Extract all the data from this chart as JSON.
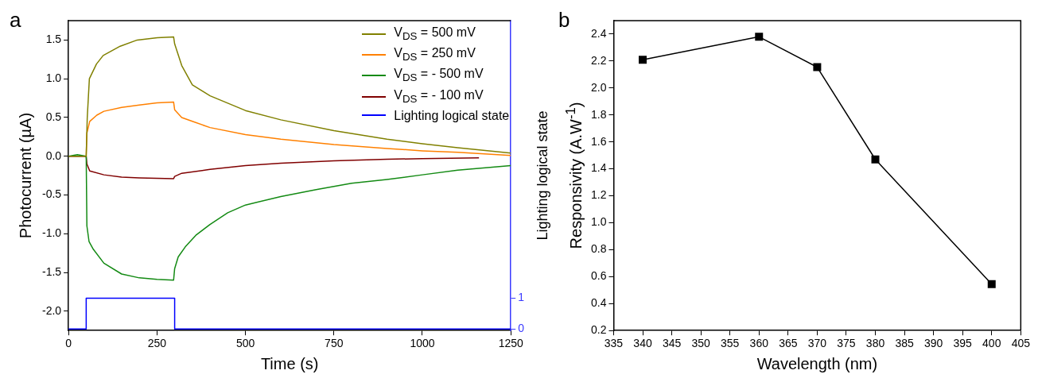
{
  "chart_data": [
    {
      "type": "line",
      "annotations": [
        "a"
      ],
      "xlabel": "Time (s)",
      "ylabel": "Photocurrent (µA)",
      "y2label": "Lighting logical state",
      "xlim": [
        0,
        1250
      ],
      "xticks": [
        0,
        250,
        500,
        750,
        1000,
        1250
      ],
      "ylim": [
        -2.25,
        1.75
      ],
      "yticks": [
        {
          "value": -2,
          "label": "-2.0"
        },
        -1.5,
        {
          "value": -1,
          "label": "-1.0"
        },
        -0.5,
        {
          "value": 0,
          "label": "0.0"
        },
        0.5,
        {
          "value": 1,
          "label": "1.0"
        },
        1.5
      ],
      "y2lim": [
        -0.05,
        10
      ],
      "y2ticks": [
        0,
        1
      ],
      "grid": false,
      "legend": "top right",
      "marker": "none",
      "series": [
        {
          "name": "V$_{DS}$ = 500 mV",
          "color": "#808000",
          "x": [
            0,
            25,
            50,
            53,
            59,
            79,
            98,
            146,
            194,
            251,
            297,
            300,
            320,
            350,
            400,
            500,
            600,
            750,
            900,
            1000,
            1100,
            1250
          ],
          "values": [
            0,
            0,
            0,
            0.5,
            1.0,
            1.19,
            1.3,
            1.42,
            1.5,
            1.53,
            1.54,
            1.45,
            1.17,
            0.92,
            0.78,
            0.59,
            0.47,
            0.33,
            0.22,
            0.16,
            0.11,
            0.04
          ]
        },
        {
          "name": "V$_{DS}$ = 250 mV",
          "color": "#ff8000",
          "x": [
            50,
            52,
            60,
            80,
            100,
            150,
            200,
            250,
            297,
            300,
            320,
            350,
            400,
            500,
            600,
            750,
            900,
            1000,
            1100,
            1250
          ],
          "values": [
            0,
            0.3,
            0.45,
            0.53,
            0.58,
            0.63,
            0.66,
            0.69,
            0.7,
            0.6,
            0.5,
            0.45,
            0.37,
            0.28,
            0.22,
            0.15,
            0.1,
            0.07,
            0.05,
            0.01
          ]
        },
        {
          "name": "V$_{DS}$ = - 500 mV",
          "color": "#138a13",
          "x": [
            0,
            25,
            50,
            52,
            58,
            70,
            100,
            150,
            200,
            250,
            297,
            300,
            310,
            330,
            360,
            400,
            450,
            500,
            600,
            700,
            800,
            900,
            1000,
            1100,
            1250
          ],
          "values": [
            0,
            0.02,
            0,
            -0.9,
            -1.1,
            -1.2,
            -1.38,
            -1.52,
            -1.57,
            -1.59,
            -1.6,
            -1.45,
            -1.3,
            -1.17,
            -1.02,
            -0.88,
            -0.73,
            -0.63,
            -0.52,
            -0.43,
            -0.35,
            -0.3,
            -0.24,
            -0.18,
            -0.12
          ]
        },
        {
          "name": "V$_{DS}$ = - 100 mV",
          "color": "#800000",
          "x": [
            0,
            25,
            50,
            52,
            60,
            100,
            150,
            200,
            297,
            300,
            320,
            400,
            500,
            600,
            750,
            900,
            1000,
            1160
          ],
          "values": [
            0,
            0,
            0,
            -0.1,
            -0.19,
            -0.24,
            -0.27,
            -0.28,
            -0.29,
            -0.26,
            -0.22,
            -0.17,
            -0.12,
            -0.09,
            -0.06,
            -0.04,
            -0.03,
            -0.02
          ]
        },
        {
          "name": "Lighting logical state",
          "type": "step",
          "axis": "y2",
          "color": "#0000ff",
          "x": [
            0,
            50,
            300,
            1250
          ],
          "values": [
            0,
            1,
            0,
            0
          ]
        }
      ]
    },
    {
      "type": "line",
      "annotations": [
        "b"
      ],
      "xlabel": "Wavelength (nm)",
      "ylabel": "Responsivity (A.W$^{-1}$)",
      "x": [
        340,
        360,
        370,
        380,
        400
      ],
      "values": [
        2.21,
        2.38,
        2.155,
        1.47,
        0.545
      ],
      "color": "#000000",
      "marker": "square",
      "grid": false,
      "xlim": [
        335,
        405
      ],
      "xticks": [
        335,
        340,
        345,
        350,
        355,
        360,
        365,
        370,
        375,
        380,
        385,
        390,
        395,
        400,
        405
      ],
      "ylim": [
        0.2,
        2.5
      ],
      "yticks": [
        0.2,
        0.4,
        0.6,
        0.8,
        {
          "value": 1,
          "label": "1.0"
        },
        1.2,
        1.4,
        1.6,
        1.8,
        {
          "value": 2,
          "label": "2.0"
        },
        2.2,
        2.4
      ]
    }
  ]
}
